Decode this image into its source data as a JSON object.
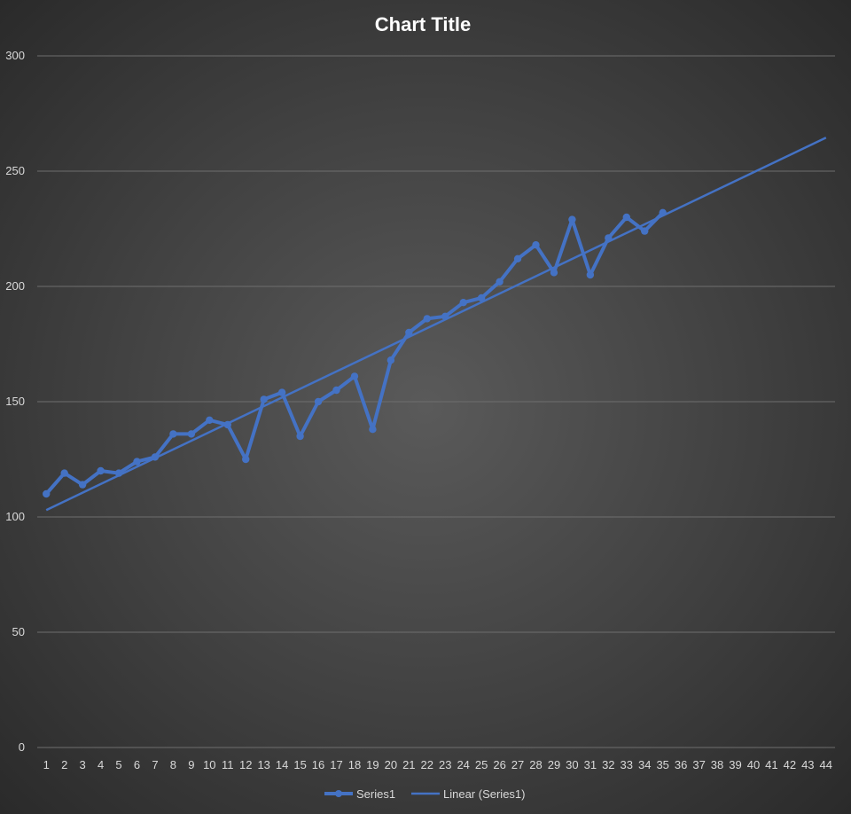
{
  "chart_data": {
    "type": "line",
    "title": "Chart Title",
    "xlabel": "",
    "ylabel": "",
    "categories": [
      1,
      2,
      3,
      4,
      5,
      6,
      7,
      8,
      9,
      10,
      11,
      12,
      13,
      14,
      15,
      16,
      17,
      18,
      19,
      20,
      21,
      22,
      23,
      24,
      25,
      26,
      27,
      28,
      29,
      30,
      31,
      32,
      33,
      34,
      35,
      36,
      37,
      38,
      39,
      40,
      41,
      42,
      43,
      44
    ],
    "ylim": [
      0,
      300
    ],
    "yticks": [
      0,
      50,
      100,
      150,
      200,
      250,
      300
    ],
    "grid": true,
    "legend_position": "bottom",
    "series": [
      {
        "name": "Series1",
        "type": "line-markers",
        "color": "#4472c4",
        "x": [
          1,
          2,
          3,
          4,
          5,
          6,
          7,
          8,
          9,
          10,
          11,
          12,
          13,
          14,
          15,
          16,
          17,
          18,
          19,
          20,
          21,
          22,
          23,
          24,
          25,
          26,
          27,
          28,
          29,
          30,
          31,
          32,
          33,
          34,
          35
        ],
        "values": [
          110,
          119,
          114,
          120,
          119,
          124,
          126,
          136,
          136,
          142,
          140,
          125,
          151,
          154,
          135,
          150,
          155,
          161,
          138,
          168,
          180,
          186,
          187,
          193,
          195,
          202,
          212,
          218,
          206,
          229,
          205,
          221,
          230,
          224,
          232
        ]
      },
      {
        "name": "Linear (Series1)",
        "type": "trendline",
        "color": "#4472c4",
        "x": [
          1,
          44
        ],
        "values": [
          103,
          264.5
        ]
      }
    ]
  }
}
